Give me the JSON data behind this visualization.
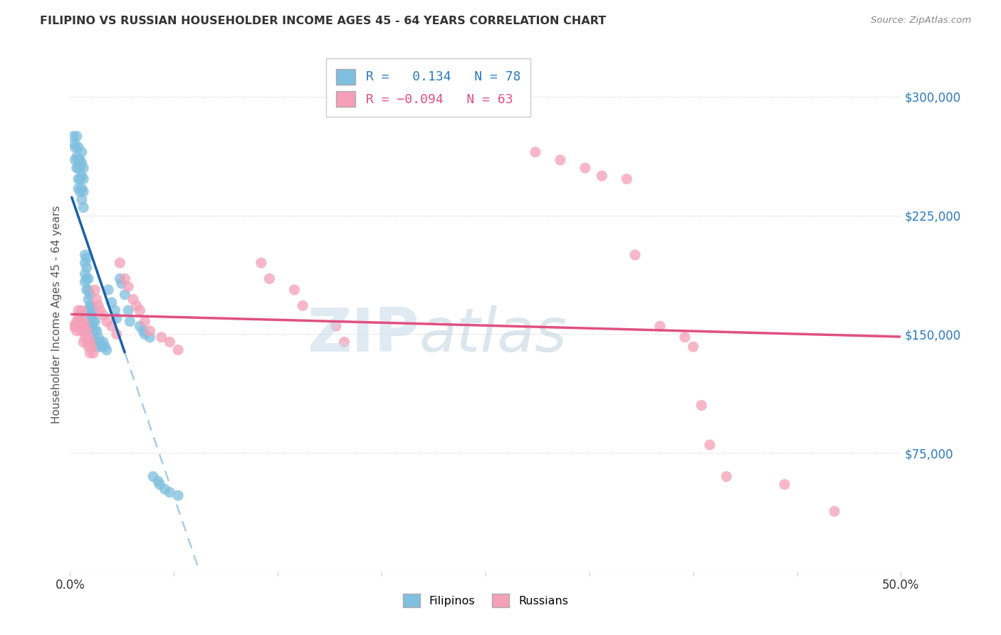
{
  "title": "FILIPINO VS RUSSIAN HOUSEHOLDER INCOME AGES 45 - 64 YEARS CORRELATION CHART",
  "source": "Source: ZipAtlas.com",
  "ylabel": "Householder Income Ages 45 - 64 years",
  "xlim": [
    0.0,
    0.5
  ],
  "ylim": [
    0,
    325000
  ],
  "yticks": [
    75000,
    150000,
    225000,
    300000
  ],
  "ytick_labels": [
    "$75,000",
    "$150,000",
    "$225,000",
    "$300,000"
  ],
  "xtick_positions": [
    0.0,
    0.0625,
    0.125,
    0.1875,
    0.25,
    0.3125,
    0.375,
    0.4375,
    0.5
  ],
  "filipino_R": 0.134,
  "filipino_N": 78,
  "russian_R": -0.094,
  "russian_N": 63,
  "filipino_color": "#7fbfdf",
  "russian_color": "#f4a0b8",
  "trend_filipino_solid_color": "#1a5fa8",
  "trend_filipino_dashed_color": "#a8cce8",
  "trend_russian_color": "#e05080",
  "background_color": "#ffffff",
  "fil_x": [
    0.002,
    0.003,
    0.003,
    0.003,
    0.004,
    0.004,
    0.004,
    0.005,
    0.005,
    0.005,
    0.005,
    0.005,
    0.006,
    0.006,
    0.006,
    0.006,
    0.007,
    0.007,
    0.007,
    0.007,
    0.007,
    0.008,
    0.008,
    0.008,
    0.008,
    0.009,
    0.009,
    0.009,
    0.009,
    0.01,
    0.01,
    0.01,
    0.01,
    0.011,
    0.011,
    0.011,
    0.011,
    0.012,
    0.012,
    0.012,
    0.012,
    0.013,
    0.013,
    0.013,
    0.014,
    0.014,
    0.014,
    0.015,
    0.015,
    0.015,
    0.016,
    0.016,
    0.017,
    0.017,
    0.018,
    0.019,
    0.02,
    0.021,
    0.022,
    0.023,
    0.025,
    0.027,
    0.028,
    0.03,
    0.031,
    0.033,
    0.035,
    0.036,
    0.042,
    0.044,
    0.045,
    0.048,
    0.05,
    0.053,
    0.054,
    0.057,
    0.06,
    0.065
  ],
  "fil_y": [
    275000,
    270000,
    268000,
    260000,
    275000,
    262000,
    255000,
    268000,
    260000,
    255000,
    248000,
    242000,
    260000,
    255000,
    248000,
    240000,
    265000,
    258000,
    250000,
    242000,
    235000,
    255000,
    248000,
    240000,
    230000,
    200000,
    195000,
    188000,
    183000,
    198000,
    192000,
    185000,
    178000,
    185000,
    178000,
    172000,
    165000,
    175000,
    168000,
    162000,
    155000,
    168000,
    162000,
    156000,
    165000,
    158000,
    152000,
    158000,
    152000,
    146000,
    152000,
    145000,
    148000,
    142000,
    145000,
    142000,
    145000,
    142000,
    140000,
    178000,
    170000,
    165000,
    160000,
    185000,
    182000,
    175000,
    165000,
    158000,
    155000,
    152000,
    150000,
    148000,
    60000,
    57000,
    55000,
    52000,
    50000,
    48000
  ],
  "rus_x": [
    0.002,
    0.003,
    0.004,
    0.004,
    0.005,
    0.005,
    0.006,
    0.006,
    0.007,
    0.007,
    0.007,
    0.008,
    0.008,
    0.008,
    0.009,
    0.009,
    0.01,
    0.01,
    0.011,
    0.011,
    0.012,
    0.012,
    0.013,
    0.014,
    0.015,
    0.016,
    0.017,
    0.018,
    0.02,
    0.022,
    0.025,
    0.028,
    0.03,
    0.033,
    0.035,
    0.038,
    0.04,
    0.042,
    0.045,
    0.048,
    0.055,
    0.06,
    0.065,
    0.115,
    0.12,
    0.135,
    0.14,
    0.16,
    0.165,
    0.28,
    0.295,
    0.31,
    0.32,
    0.335,
    0.34,
    0.355,
    0.37,
    0.375,
    0.38,
    0.385,
    0.395,
    0.43,
    0.46
  ],
  "rus_y": [
    155000,
    155000,
    158000,
    152000,
    165000,
    160000,
    162000,
    158000,
    165000,
    158000,
    152000,
    158000,
    152000,
    145000,
    155000,
    148000,
    152000,
    145000,
    148000,
    142000,
    145000,
    138000,
    142000,
    138000,
    178000,
    172000,
    168000,
    165000,
    162000,
    158000,
    155000,
    150000,
    195000,
    185000,
    180000,
    172000,
    168000,
    165000,
    158000,
    152000,
    148000,
    145000,
    140000,
    195000,
    185000,
    178000,
    168000,
    155000,
    145000,
    265000,
    260000,
    255000,
    250000,
    248000,
    200000,
    155000,
    148000,
    142000,
    105000,
    80000,
    60000,
    55000,
    38000
  ]
}
